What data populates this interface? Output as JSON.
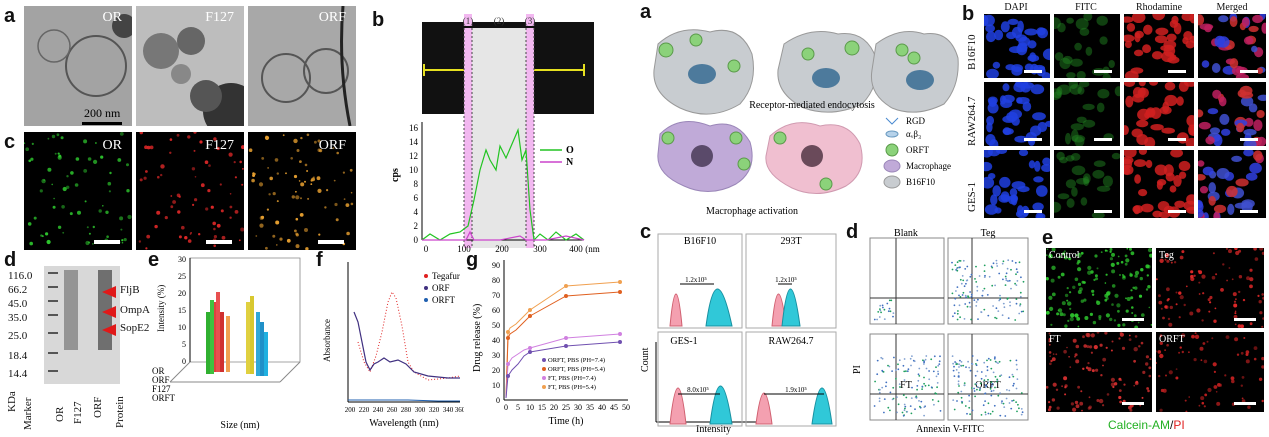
{
  "panels": {
    "a1": "a",
    "c1": "c",
    "d1": "d",
    "e1": "e",
    "f1": "f",
    "g1": "g",
    "b1": "b",
    "a2": "a",
    "b2": "b",
    "c2": "c",
    "d2": "d",
    "e2": "e"
  },
  "tem": {
    "labels": [
      "OR",
      "F127",
      "ORF"
    ],
    "scalebar": "200 nm"
  },
  "fluorescence_c": {
    "labels": [
      "OR",
      "F127",
      "ORF"
    ]
  },
  "line_scan": {
    "regions": [
      "(1)",
      "(2)",
      "(3)"
    ],
    "ylabel": "cps",
    "xunit": "(nm)",
    "legend": [
      "O",
      "N"
    ]
  },
  "schematic": {
    "caption1": "Receptor-mediated endocytosis",
    "caption2": "Macrophage activation",
    "legend": [
      "RGD",
      "αᵥβ₃",
      "ORFT",
      "Macrophage",
      "B16F10"
    ]
  },
  "confocal": {
    "columns": [
      "DAPI",
      "FITC",
      "Rhodamine",
      "Merged"
    ],
    "rows": [
      "B16F10",
      "RAW264.7",
      "GES-1"
    ]
  },
  "gel": {
    "markers": [
      "116.0",
      "66.2",
      "45.0",
      "35.0",
      "25.0",
      "18.4",
      "14.4"
    ],
    "unit": "KDa",
    "lanes": [
      "Marker",
      "OR",
      "F127",
      "ORF",
      "Protein"
    ],
    "bands": [
      "FljB",
      "OmpA",
      "SopE2"
    ]
  },
  "size_dist": {
    "ylabel": "Intensity (%)",
    "xlabel": "Size (nm)",
    "yticks": [
      "0",
      "5",
      "10",
      "15",
      "20",
      "25",
      "30"
    ],
    "series": [
      "OR",
      "ORF",
      "F127",
      "ORFT"
    ]
  },
  "absorbance": {
    "ylabel": "Absorbance",
    "xlabel": "Wavelength (nm)",
    "xticks": [
      "200",
      "220",
      "240",
      "260",
      "280",
      "300",
      "320",
      "340",
      "360"
    ],
    "legend": [
      "Tegafur",
      "ORF",
      "ORFT"
    ]
  },
  "release": {
    "ylabel": "Drug release (%)",
    "xlabel": "Time (h)",
    "xticks": [
      "0",
      "5",
      "10",
      "15",
      "20",
      "25",
      "30",
      "35",
      "40",
      "45",
      "50"
    ],
    "yticks": [
      "0",
      "10",
      "20",
      "30",
      "40",
      "50",
      "60",
      "70",
      "80",
      "90"
    ],
    "legend": [
      "ORFT, PBS (PH=7.4)",
      "ORFT, PBS (PH=5.4)",
      "FT, PBS (PH=7.4)",
      "FT, PBS (PH=5.4)"
    ]
  },
  "flow": {
    "titles": [
      "B16F10",
      "293T",
      "GES-1",
      "RAW264.7"
    ],
    "values": [
      "1.2x10⁵",
      "1.2x10⁵",
      "8.0x10⁵",
      "1.9x10⁵"
    ],
    "ylabel": "Count",
    "xlabel": "Intensity"
  },
  "annexin": {
    "titles": [
      "Blank",
      "Teg",
      "FT",
      "ORFT"
    ],
    "ylabel": "PI",
    "xlabel": "Annexin V-FITC"
  },
  "live_dead": {
    "labels": [
      "Control",
      "Teg",
      "FT",
      "ORFT"
    ],
    "caption_green": "Calcein-AM",
    "caption_sep": "/",
    "caption_red": "PI"
  },
  "colors": {
    "green": "#22c422",
    "red": "#e02020",
    "magenta": "#cc44cc",
    "pink_fill": "#f4a0b0",
    "cyan_fill": "#30c8d8",
    "orange": "#f0a030"
  }
}
